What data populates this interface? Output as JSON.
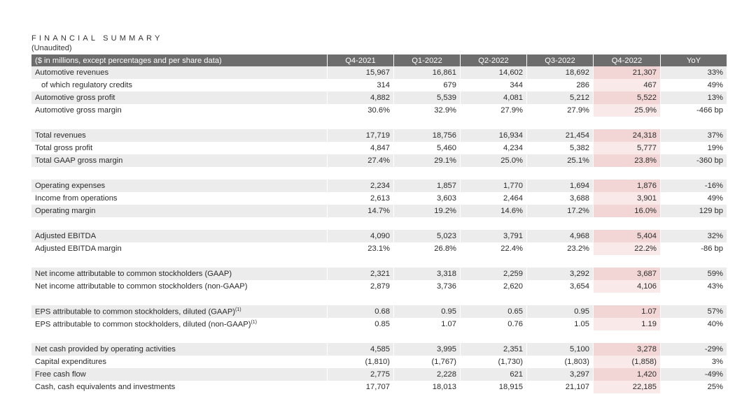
{
  "title": "FINANCIAL SUMMARY",
  "subtitle": "(Unaudited)",
  "header": [
    "($ in millions, except percentages and per share data)",
    "Q4-2021",
    "Q1-2022",
    "Q2-2022",
    "Q3-2022",
    "Q4-2022",
    "YoY"
  ],
  "groups": [
    [
      {
        "label": "Automotive revenues",
        "values": [
          "15,967",
          "16,861",
          "14,602",
          "18,692",
          "21,307",
          "33%"
        ]
      },
      {
        "label": "of which regulatory credits",
        "indent": true,
        "values": [
          "314",
          "679",
          "344",
          "286",
          "467",
          "49%"
        ]
      },
      {
        "label": "Automotive gross profit",
        "values": [
          "4,882",
          "5,539",
          "4,081",
          "5,212",
          "5,522",
          "13%"
        ]
      },
      {
        "label": "Automotive gross margin",
        "values": [
          "30.6%",
          "32.9%",
          "27.9%",
          "27.9%",
          "25.9%",
          "-466 bp"
        ]
      }
    ],
    [
      {
        "label": "Total revenues",
        "values": [
          "17,719",
          "18,756",
          "16,934",
          "21,454",
          "24,318",
          "37%"
        ]
      },
      {
        "label": "Total gross profit",
        "values": [
          "4,847",
          "5,460",
          "4,234",
          "5,382",
          "5,777",
          "19%"
        ]
      },
      {
        "label": "Total GAAP gross margin",
        "values": [
          "27.4%",
          "29.1%",
          "25.0%",
          "25.1%",
          "23.8%",
          "-360 bp"
        ]
      }
    ],
    [
      {
        "label": "Operating expenses",
        "values": [
          "2,234",
          "1,857",
          "1,770",
          "1,694",
          "1,876",
          "-16%"
        ]
      },
      {
        "label": "Income from operations",
        "values": [
          "2,613",
          "3,603",
          "2,464",
          "3,688",
          "3,901",
          "49%"
        ]
      },
      {
        "label": "Operating margin",
        "values": [
          "14.7%",
          "19.2%",
          "14.6%",
          "17.2%",
          "16.0%",
          "129 bp"
        ]
      }
    ],
    [
      {
        "label": "Adjusted EBITDA",
        "values": [
          "4,090",
          "5,023",
          "3,791",
          "4,968",
          "5,404",
          "32%"
        ]
      },
      {
        "label": "Adjusted EBITDA margin",
        "values": [
          "23.1%",
          "26.8%",
          "22.4%",
          "23.2%",
          "22.2%",
          "-86 bp"
        ]
      }
    ],
    [
      {
        "label": "Net income attributable to common stockholders (GAAP)",
        "values": [
          "2,321",
          "3,318",
          "2,259",
          "3,292",
          "3,687",
          "59%"
        ]
      },
      {
        "label": "Net income attributable to common stockholders (non-GAAP)",
        "values": [
          "2,879",
          "3,736",
          "2,620",
          "3,654",
          "4,106",
          "43%"
        ]
      }
    ],
    [
      {
        "label": "EPS attributable to common stockholders, diluted (GAAP)",
        "note": "(1)",
        "values": [
          "0.68",
          "0.95",
          "0.65",
          "0.95",
          "1.07",
          "57%"
        ]
      },
      {
        "label": "EPS attributable to common stockholders, diluted (non-GAAP)",
        "note": "(1)",
        "values": [
          "0.85",
          "1.07",
          "0.76",
          "1.05",
          "1.19",
          "40%"
        ]
      }
    ],
    [
      {
        "label": "Net cash provided by operating activities",
        "values": [
          "4,585",
          "3,995",
          "2,351",
          "5,100",
          "3,278",
          "-29%"
        ]
      },
      {
        "label": "Capital expenditures",
        "values": [
          "(1,810)",
          "(1,767)",
          "(1,730)",
          "(1,803)",
          "(1,858)",
          "3%"
        ]
      },
      {
        "label": "Free cash flow",
        "values": [
          "2,775",
          "2,228",
          "621",
          "3,297",
          "1,420",
          "-49%"
        ]
      },
      {
        "label": "Cash, cash equivalents and investments",
        "values": [
          "17,707",
          "18,013",
          "18,915",
          "21,107",
          "22,185",
          "25%"
        ]
      }
    ]
  ]
}
